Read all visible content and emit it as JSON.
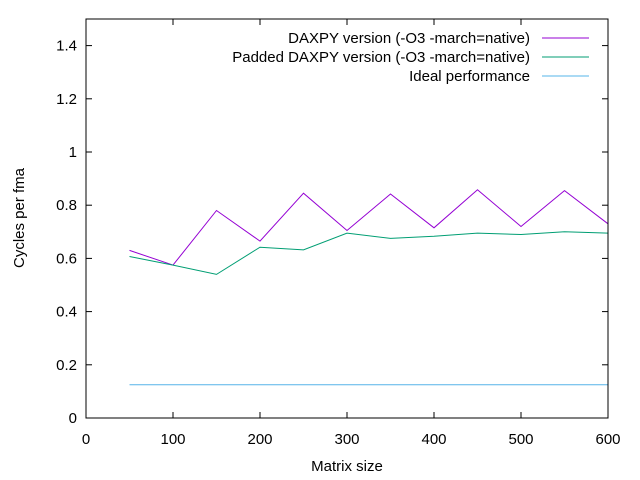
{
  "chart_data": {
    "type": "line",
    "xlabel": "Matrix size",
    "ylabel": "Cycles per fma",
    "xlim": [
      0,
      600
    ],
    "ylim": [
      0,
      1.5
    ],
    "xticks": [
      0,
      100,
      200,
      300,
      400,
      500,
      600
    ],
    "yticks": [
      0,
      0.2,
      0.4,
      0.6,
      0.8,
      1,
      1.2,
      1.4
    ],
    "xtick_labels": [
      "0",
      "100",
      "200",
      "300",
      "400",
      "500",
      "600"
    ],
    "ytick_labels": [
      "0",
      "0.2",
      "0.4",
      "0.6",
      "0.8",
      "1",
      "1.2",
      "1.4"
    ],
    "grid": false,
    "legend_position": "top-right",
    "series": [
      {
        "name": "DAXPY version (-O3 -march=native)",
        "color": "#9400d3",
        "x": [
          50,
          100,
          150,
          200,
          250,
          300,
          350,
          400,
          450,
          500,
          550,
          600
        ],
        "y": [
          0.63,
          0.575,
          0.78,
          0.665,
          0.845,
          0.705,
          0.842,
          0.715,
          0.858,
          0.72,
          0.855,
          0.73
        ]
      },
      {
        "name": "Padded DAXPY version (-O3 -march=native)",
        "color": "#009e73",
        "x": [
          50,
          100,
          150,
          200,
          250,
          300,
          350,
          400,
          450,
          500,
          550,
          600
        ],
        "y": [
          0.607,
          0.575,
          0.54,
          0.642,
          0.632,
          0.695,
          0.675,
          0.683,
          0.695,
          0.69,
          0.7,
          0.695
        ]
      },
      {
        "name": "Ideal performance",
        "color": "#56b4e9",
        "x": [
          50,
          100,
          150,
          200,
          250,
          300,
          350,
          400,
          450,
          500,
          550,
          600
        ],
        "y": [
          0.125,
          0.125,
          0.125,
          0.125,
          0.125,
          0.125,
          0.125,
          0.125,
          0.125,
          0.125,
          0.125,
          0.125
        ]
      }
    ]
  }
}
